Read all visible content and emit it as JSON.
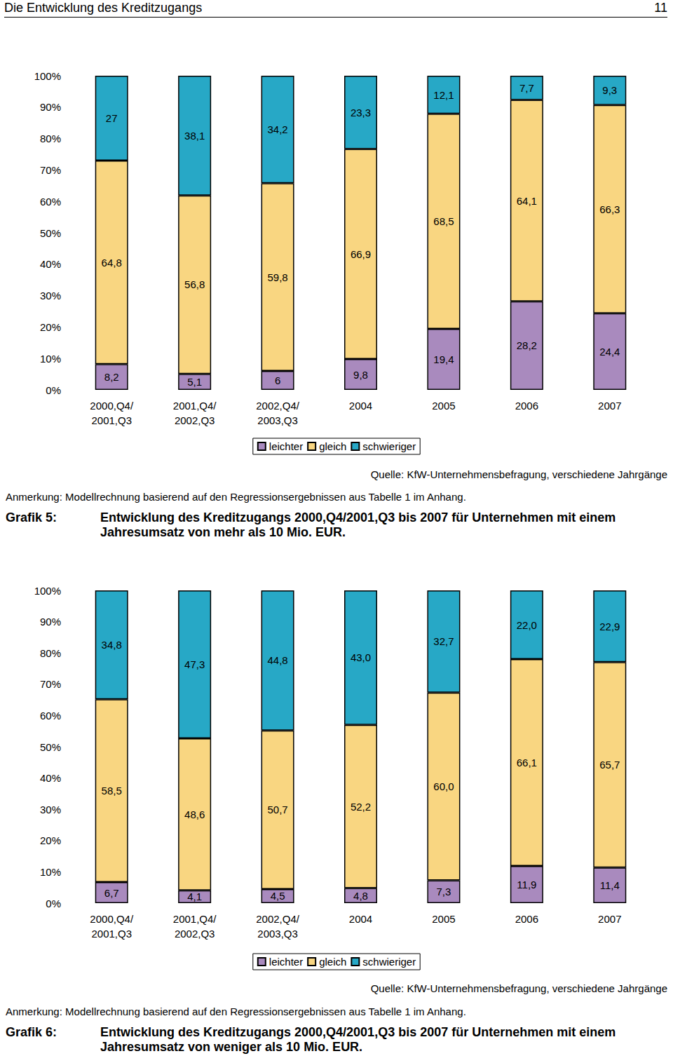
{
  "page": {
    "header": "Die Entwicklung des Kreditzugangs",
    "page_number": 11
  },
  "chart_data": [
    {
      "type": "bar",
      "stacked": true,
      "data_labels": true,
      "grid": false,
      "legend": "bottom",
      "figure_label": "Grafik 5:",
      "title": "Entwicklung des Kreditzugangs 2000,Q4/2001,Q3 bis 2007 für Unternehmen mit einem Jahresumsatz von mehr als 10 Mio. EUR.",
      "annotations": [
        "Quelle: KfW-Unternehmensbefragung, verschiedene Jahrgänge",
        "Anmerkung: Modellrechnung basierend auf den Regressionsergebnissen aus Tabelle 1 im Anhang."
      ],
      "categories": [
        "2000,Q4/\n2001,Q3",
        "2001,Q4/\n2002,Q3",
        "2002,Q4/\n2003,Q3",
        "2004",
        "2005",
        "2006",
        "2007"
      ],
      "ylim": [
        0,
        100
      ],
      "yticks": [
        {
          "value": 0,
          "label": "0%"
        },
        {
          "value": 10,
          "label": "10%"
        },
        {
          "value": 20,
          "label": "20%"
        },
        {
          "value": 30,
          "label": "30%"
        },
        {
          "value": 40,
          "label": "40%"
        },
        {
          "value": 50,
          "label": "50%"
        },
        {
          "value": 60,
          "label": "60%"
        },
        {
          "value": 70,
          "label": "70%"
        },
        {
          "value": 80,
          "label": "80%"
        },
        {
          "value": 90,
          "label": "90%"
        },
        {
          "value": 100,
          "label": "100%"
        }
      ],
      "series": [
        {
          "name": "leichter",
          "color": "#a98abe",
          "values": [
            8.2,
            5.1,
            6,
            9.8,
            19.4,
            28.2,
            24.4
          ],
          "value_labels": [
            "8,2",
            "5,1",
            "6",
            "9,8",
            "19,4",
            "28,2",
            "24,4"
          ]
        },
        {
          "name": "gleich",
          "color": "#f9d681",
          "values": [
            64.8,
            56.8,
            59.8,
            66.9,
            68.5,
            64.1,
            66.3
          ],
          "value_labels": [
            "64,8",
            "56,8",
            "59,8",
            "66,9",
            "68,5",
            "64,1",
            "66,3"
          ]
        },
        {
          "name": "schwieriger",
          "color": "#27a8c6",
          "values": [
            27,
            38.1,
            34.2,
            23.3,
            12.1,
            7.7,
            9.3
          ],
          "value_labels": [
            "27",
            "38,1",
            "34,2",
            "23,3",
            "12,1",
            "7,7",
            "9,3"
          ]
        }
      ]
    },
    {
      "type": "bar",
      "stacked": true,
      "data_labels": true,
      "grid": false,
      "legend": "bottom",
      "figure_label": "Grafik 6:",
      "title": "Entwicklung des Kreditzugangs 2000,Q4/2001,Q3 bis 2007 für Unternehmen mit einem Jahresumsatz von weniger als 10 Mio. EUR.",
      "annotations": [
        "Quelle: KfW-Unternehmensbefragung, verschiedene Jahrgänge",
        "Anmerkung: Modellrechnung basierend auf den Regressionsergebnissen aus Tabelle 1 im Anhang."
      ],
      "categories": [
        "2000,Q4/\n2001,Q3",
        "2001,Q4/\n2002,Q3",
        "2002,Q4/\n2003,Q3",
        "2004",
        "2005",
        "2006",
        "2007"
      ],
      "ylim": [
        0,
        100
      ],
      "yticks": [
        {
          "value": 0,
          "label": "0%"
        },
        {
          "value": 10,
          "label": "10%"
        },
        {
          "value": 20,
          "label": "20%"
        },
        {
          "value": 30,
          "label": "30%"
        },
        {
          "value": 40,
          "label": "40%"
        },
        {
          "value": 50,
          "label": "50%"
        },
        {
          "value": 60,
          "label": "60%"
        },
        {
          "value": 70,
          "label": "70%"
        },
        {
          "value": 80,
          "label": "80%"
        },
        {
          "value": 90,
          "label": "90%"
        },
        {
          "value": 100,
          "label": "100%"
        }
      ],
      "series": [
        {
          "name": "leichter",
          "color": "#a98abe",
          "values": [
            6.7,
            4.1,
            4.5,
            4.8,
            7.3,
            11.9,
            11.4
          ],
          "value_labels": [
            "6,7",
            "4,1",
            "4,5",
            "4,8",
            "7,3",
            "11,9",
            "11,4"
          ]
        },
        {
          "name": "gleich",
          "color": "#f9d681",
          "values": [
            58.5,
            48.6,
            50.7,
            52.2,
            60.0,
            66.1,
            65.7
          ],
          "value_labels": [
            "58,5",
            "48,6",
            "50,7",
            "52,2",
            "60,0",
            "66,1",
            "65,7"
          ]
        },
        {
          "name": "schwieriger",
          "color": "#27a8c6",
          "values": [
            34.8,
            47.3,
            44.8,
            43.0,
            32.7,
            22.0,
            22.9
          ],
          "value_labels": [
            "34,8",
            "47,3",
            "44,8",
            "43,0",
            "32,7",
            "22,0",
            "22,9"
          ]
        }
      ]
    }
  ]
}
